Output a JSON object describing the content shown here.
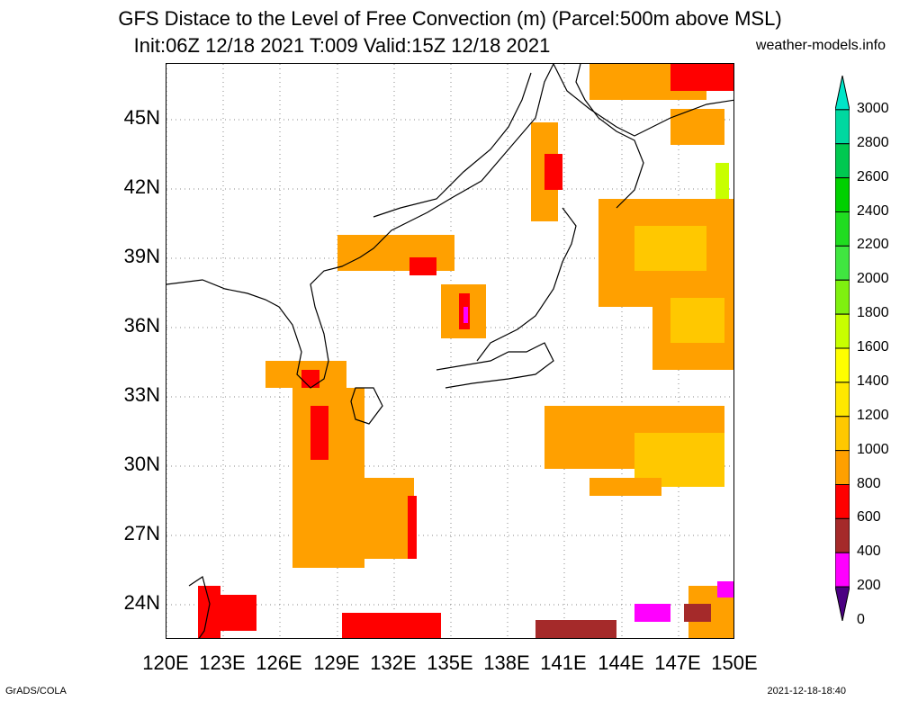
{
  "title_line1": "GFS Distace to the Level of Free Convection (m) (Parcel:500m above MSL)",
  "title_line2": "Init:06Z 12/18 2021 T:009 Valid:15Z 12/18 2021",
  "credit": "weather-models.info",
  "footer_left": "GrADS/COLA",
  "footer_right": "2021-12-18-18:40",
  "lat_labels": [
    "45N",
    "42N",
    "39N",
    "36N",
    "33N",
    "30N",
    "27N",
    "24N"
  ],
  "lon_labels": [
    "120E",
    "123E",
    "126E",
    "129E",
    "132E",
    "135E",
    "138E",
    "141E",
    "144E",
    "147E",
    "150E"
  ],
  "colorbar": {
    "labels": [
      "3000",
      "2800",
      "2600",
      "2400",
      "2200",
      "2000",
      "1800",
      "1600",
      "1400",
      "1200",
      "1000",
      "800",
      "600",
      "400",
      "200",
      "0"
    ],
    "colors": [
      "#00e5c8",
      "#00d8a0",
      "#00c850",
      "#00d000",
      "#20dc20",
      "#40e640",
      "#7ff00f",
      "#c8ff00",
      "#ffff00",
      "#ffe800",
      "#ffc800",
      "#ffa000",
      "#ff0000",
      "#a52a2a",
      "#ff00ff",
      "#4b0082"
    ]
  }
}
